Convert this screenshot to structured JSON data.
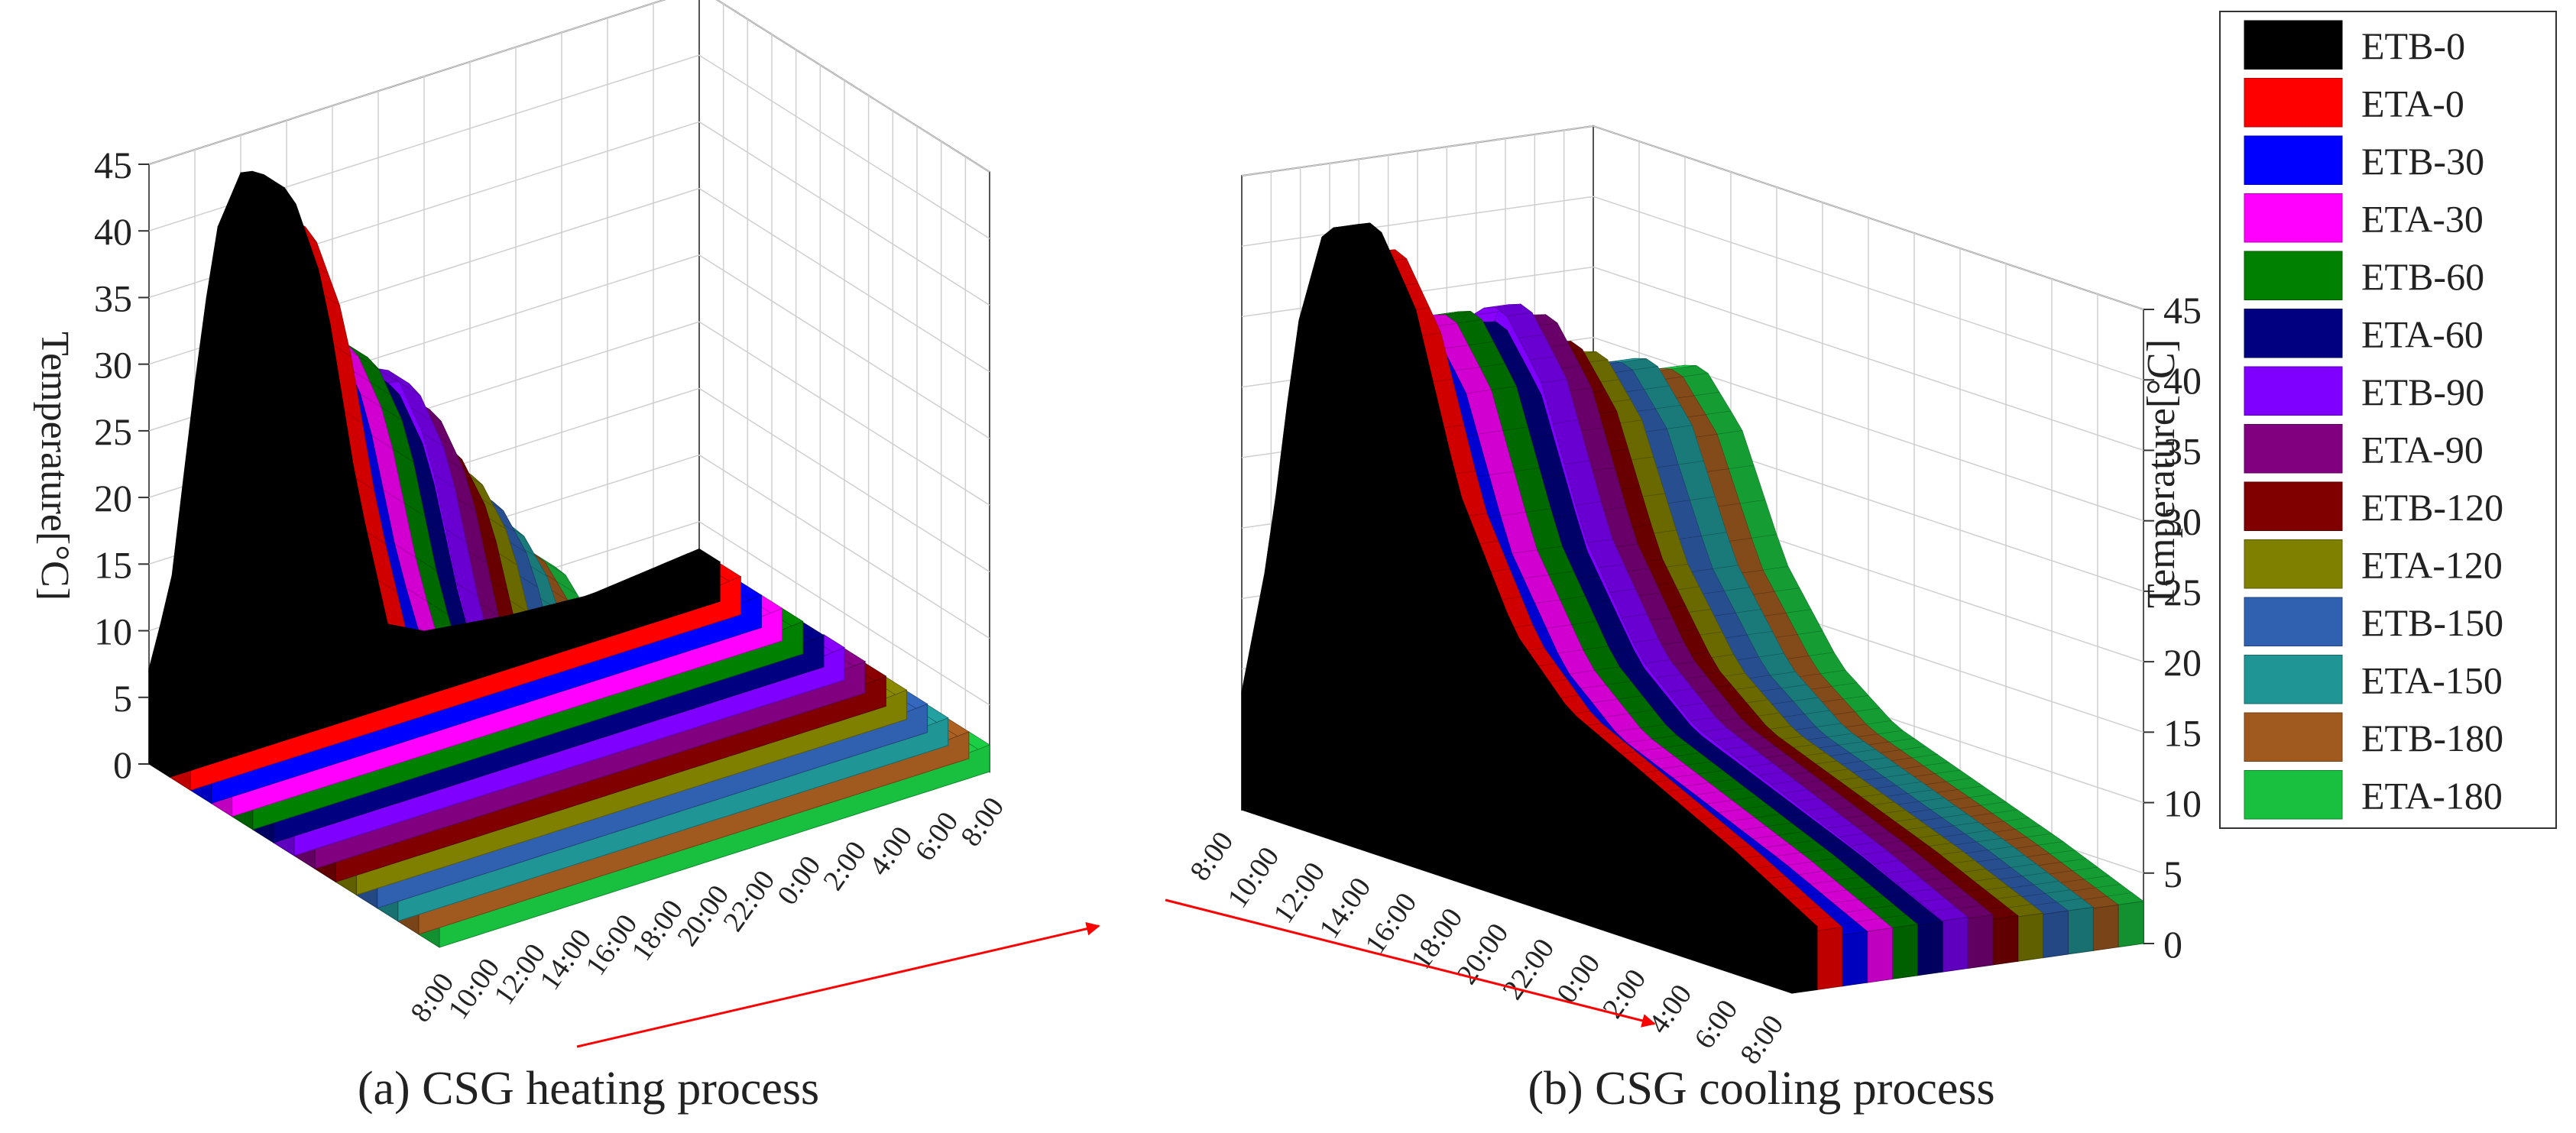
{
  "chart_data": [
    {
      "panel_id": "a",
      "type": "surface3d",
      "title": "(a)  CSG heating process",
      "zlabel": "Temperature[°C]",
      "zlim": [
        0,
        45
      ],
      "z_ticks": [
        "0",
        "5",
        "10",
        "15",
        "20",
        "25",
        "30",
        "35",
        "40",
        "45"
      ],
      "time_labels": [
        "8:00",
        "10:00",
        "12:00",
        "14:00",
        "16:00",
        "18:00",
        "20:00",
        "22:00",
        "0:00",
        "2:00",
        "4:00",
        "6:00",
        "8:00"
      ],
      "series": [
        {
          "name": "ETB-0",
          "peak": 42,
          "min": 1.5
        },
        {
          "name": "ETA-0",
          "peak": 40,
          "min": 1.5
        },
        {
          "name": "ETB-30",
          "peak": 33,
          "min": 1.5
        },
        {
          "name": "ETA-30",
          "peak": 33,
          "min": 1.5
        },
        {
          "name": "ETB-60",
          "peak": 33,
          "min": 1.5
        },
        {
          "name": "ETA-60",
          "peak": 32,
          "min": 1.5
        },
        {
          "name": "ETB-90",
          "peak": 33,
          "min": 1.5
        },
        {
          "name": "ETA-90",
          "peak": 32,
          "min": 1.5
        },
        {
          "name": "ETB-120",
          "peak": 30,
          "min": 1.5
        },
        {
          "name": "ETA-120",
          "peak": 29,
          "min": 1.5
        },
        {
          "name": "ETB-150",
          "peak": 28,
          "min": 1.5
        },
        {
          "name": "ETA-150",
          "peak": 27,
          "min": 1.5
        },
        {
          "name": "ETB-180",
          "peak": 26,
          "min": 1.5
        },
        {
          "name": "ETA-180",
          "peak": 26,
          "min": 1.5
        }
      ]
    },
    {
      "panel_id": "b",
      "type": "surface3d",
      "title": "(b)  CSG cooling process",
      "zlabel": "Temperature[°C]",
      "zlim": [
        0,
        45
      ],
      "z_ticks": [
        "0",
        "5",
        "10",
        "15",
        "20",
        "25",
        "30",
        "35",
        "40",
        "45"
      ],
      "time_labels": [
        "8:00",
        "10:00",
        "12:00",
        "14:00",
        "16:00",
        "18:00",
        "20:00",
        "22:00",
        "0:00",
        "2:00",
        "4:00",
        "6:00",
        "8:00"
      ],
      "series": [
        {
          "name": "ETB-0",
          "peak": 43,
          "min": 3.5
        },
        {
          "name": "ETA-0",
          "peak": 41,
          "min": 3.0
        },
        {
          "name": "ETB-30",
          "peak": 36,
          "min": 2.5
        },
        {
          "name": "ETA-30",
          "peak": 36,
          "min": 2.5
        },
        {
          "name": "ETB-60",
          "peak": 36,
          "min": 2.5
        },
        {
          "name": "ETA-60",
          "peak": 35,
          "min": 2.5
        },
        {
          "name": "ETB-90",
          "peak": 36,
          "min": 2.5
        },
        {
          "name": "ETA-90",
          "peak": 35,
          "min": 2.5
        },
        {
          "name": "ETB-120",
          "peak": 33,
          "min": 2.0
        },
        {
          "name": "ETA-120",
          "peak": 32,
          "min": 2.0
        },
        {
          "name": "ETB-150",
          "peak": 31,
          "min": 2.0
        },
        {
          "name": "ETA-150",
          "peak": 31,
          "min": 2.0
        },
        {
          "name": "ETB-180",
          "peak": 30,
          "min": 2.0
        },
        {
          "name": "ETA-180",
          "peak": 30,
          "min": 2.0
        }
      ]
    }
  ],
  "legend": {
    "items": [
      {
        "label": "ETB-0",
        "color": "#000000"
      },
      {
        "label": "ETA-0",
        "color": "#ff0000"
      },
      {
        "label": "ETB-30",
        "color": "#0000ff"
      },
      {
        "label": "ETA-30",
        "color": "#ff00ff"
      },
      {
        "label": "ETB-60",
        "color": "#008000"
      },
      {
        "label": "ETA-60",
        "color": "#000080"
      },
      {
        "label": "ETB-90",
        "color": "#8000ff"
      },
      {
        "label": "ETA-90",
        "color": "#800080"
      },
      {
        "label": "ETB-120",
        "color": "#800000"
      },
      {
        "label": "ETA-120",
        "color": "#808000"
      },
      {
        "label": "ETB-150",
        "color": "#3060b0"
      },
      {
        "label": "ETA-150",
        "color": "#209595"
      },
      {
        "label": "ETB-180",
        "color": "#a05a20"
      },
      {
        "label": "ETA-180",
        "color": "#19c040"
      }
    ]
  }
}
